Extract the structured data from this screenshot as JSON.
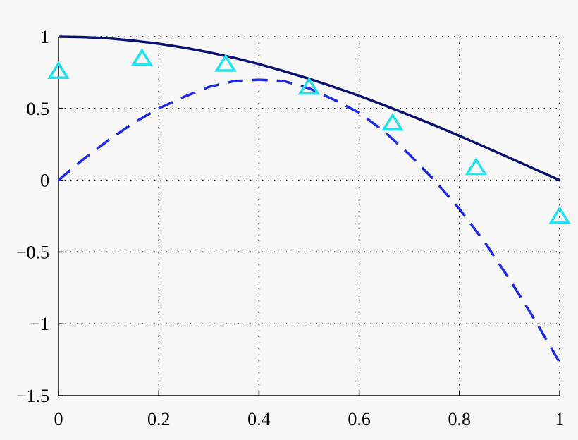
{
  "chart_data": {
    "type": "line",
    "title": "",
    "xlabel": "",
    "ylabel": "",
    "xlim": [
      0,
      1
    ],
    "ylim": [
      -1.5,
      1
    ],
    "grid": true,
    "legend": "none",
    "x_ticks": [
      {
        "value": 0,
        "label": "0"
      },
      {
        "value": 0.2,
        "label": "0.2"
      },
      {
        "value": 0.4,
        "label": "0.4"
      },
      {
        "value": 0.6,
        "label": "0.6"
      },
      {
        "value": 0.8,
        "label": "0.8"
      },
      {
        "value": 1,
        "label": "1"
      }
    ],
    "y_ticks": [
      {
        "value": 1,
        "label": "1"
      },
      {
        "value": 0.5,
        "label": "0.5"
      },
      {
        "value": 0,
        "label": "0"
      },
      {
        "value": -0.5,
        "label": "−0.5"
      },
      {
        "value": -1,
        "label": "−1"
      },
      {
        "value": -1.5,
        "label": "−1.5"
      }
    ],
    "series": [
      {
        "style": "solid",
        "color": "#0a1270",
        "x": [
          0,
          0.05,
          0.1,
          0.15,
          0.2,
          0.25,
          0.3,
          0.35,
          0.4,
          0.45,
          0.5,
          0.55,
          0.6,
          0.65,
          0.7,
          0.75,
          0.8,
          0.85,
          0.9,
          0.95,
          1
        ],
        "y": [
          1,
          0.997,
          0.988,
          0.972,
          0.951,
          0.924,
          0.891,
          0.853,
          0.809,
          0.76,
          0.707,
          0.649,
          0.588,
          0.522,
          0.454,
          0.383,
          0.309,
          0.233,
          0.156,
          0.078,
          0
        ]
      },
      {
        "style": "dashed",
        "color": "#1e2be0",
        "x": [
          0,
          0.05,
          0.1,
          0.15,
          0.2,
          0.25,
          0.3,
          0.35,
          0.4,
          0.45,
          0.5,
          0.55,
          0.6,
          0.65,
          0.7,
          0.75,
          0.8,
          0.85,
          0.9,
          0.95,
          1
        ],
        "y": [
          0,
          0.148,
          0.28,
          0.4,
          0.5,
          0.58,
          0.65,
          0.69,
          0.7,
          0.69,
          0.64,
          0.56,
          0.47,
          0.34,
          0.18,
          0.0,
          -0.2,
          -0.43,
          -0.69,
          -0.97,
          -1.27
        ]
      },
      {
        "style": "markers",
        "marker": "triangle",
        "color": "#22e0ee",
        "x": [
          0,
          0.1667,
          0.3333,
          0.5,
          0.6667,
          0.8333,
          1
        ],
        "y": [
          0.76,
          0.85,
          0.81,
          0.65,
          0.4,
          0.09,
          -0.25
        ]
      }
    ]
  }
}
